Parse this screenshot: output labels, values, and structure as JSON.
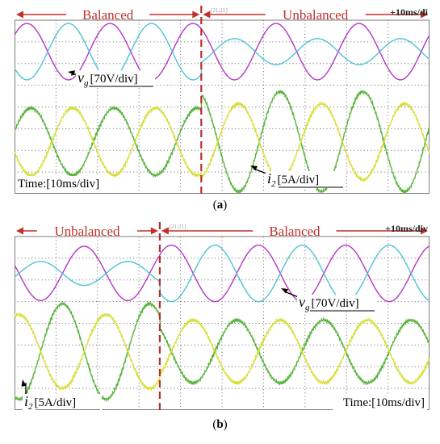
{
  "figure": {
    "caption_a": "a",
    "caption_b": "b"
  },
  "colors": {
    "vg_phase_a": "#b535c7",
    "vg_phase_b": "#4ec3d6",
    "i2_phase_a": "#5ab43e",
    "i2_phase_b": "#d8df3c",
    "mode_label": "#c0302c",
    "divider": "#b5312c",
    "grid": "#7d7d7d"
  },
  "chart_data": [
    {
      "id": "a",
      "type": "line",
      "title": "",
      "time_scale_label": "10ms/div",
      "top_label": "+10ms/di",
      "trigger_label": "{21:21}",
      "regions": [
        {
          "label": "Balanced",
          "x_start_div": 0,
          "x_end_div": 4.5
        },
        {
          "label": "Unbalanced",
          "x_start_div": 4.5,
          "x_end_div": 10
        }
      ],
      "x": {
        "unit": "div",
        "range": [
          0,
          10
        ],
        "transition_div": 4.5
      },
      "y": {
        "unit": "div",
        "range": [
          -4,
          4
        ]
      },
      "grid": true,
      "annotations": [
        {
          "text_main": "v",
          "text_sub": "g",
          "text_rest": "[70V/div]"
        },
        {
          "text_main": "i",
          "text_sub": "2",
          "text_rest": "[5A/div]"
        },
        {
          "text": "Time:[10ms/div]"
        }
      ],
      "series": [
        {
          "group": "vg",
          "colorKey": "vg_phase_a",
          "period_div": 2,
          "segments": [
            {
              "x0": 0,
              "x1": 4.5,
              "amp": 1.3,
              "offset": 2.55,
              "phase": 0.1
            },
            {
              "x0": 4.5,
              "x1": 10,
              "amp": 1.3,
              "offset": 2.55,
              "phase": 0.1
            }
          ]
        },
        {
          "group": "vg",
          "colorKey": "vg_phase_b",
          "period_div": 2,
          "segments": [
            {
              "x0": 0,
              "x1": 4.5,
              "amp": 1.3,
              "offset": 2.55,
              "phase": 0.6
            },
            {
              "x0": 4.5,
              "x1": 10,
              "amp": 0.6,
              "offset": 2.55,
              "phase": 0.6
            }
          ]
        },
        {
          "group": "i2",
          "colorKey": "i2_phase_a",
          "period_div": 2,
          "segments": [
            {
              "x0": 0,
              "x1": 4.5,
              "amp": 1.55,
              "offset": -1.6,
              "phase": 0.05
            },
            {
              "x0": 4.5,
              "x1": 10,
              "amp": 2.3,
              "offset": -1.6,
              "phase": 0.05
            }
          ]
        },
        {
          "group": "i2",
          "colorKey": "i2_phase_b",
          "period_div": 2,
          "segments": [
            {
              "x0": 0,
              "x1": 4.5,
              "amp": 1.55,
              "offset": -1.6,
              "phase": 0.55
            },
            {
              "x0": 4.5,
              "x1": 10,
              "amp": 1.75,
              "offset": -1.6,
              "phase": 0.55
            }
          ]
        }
      ]
    },
    {
      "id": "b",
      "type": "line",
      "title": "",
      "time_scale_label": "10ms/div",
      "top_label": "+10ms/div",
      "trigger_label": "{21:21}",
      "regions": [
        {
          "label": "Unbalanced",
          "x_start_div": 0,
          "x_end_div": 3.5
        },
        {
          "label": "Balanced",
          "x_start_div": 3.5,
          "x_end_div": 10
        }
      ],
      "x": {
        "unit": "div",
        "range": [
          0,
          10
        ],
        "transition_div": 3.5
      },
      "y": {
        "unit": "div",
        "range": [
          -4,
          4
        ]
      },
      "grid": true,
      "annotations": [
        {
          "text_main": "v",
          "text_sub": "g",
          "text_rest": "[70V/div]"
        },
        {
          "text_main": "i",
          "text_sub": "2",
          "text_rest": "[5A/div]"
        },
        {
          "text": "Time:[10ms/div]"
        }
      ],
      "series": [
        {
          "group": "vg",
          "colorKey": "vg_phase_a",
          "period_div": 2.1,
          "segments": [
            {
              "x0": 0,
              "x1": 3.5,
              "amp": 1.25,
              "offset": 2.3,
              "phase": 0.45
            },
            {
              "x0": 3.5,
              "x1": 10,
              "amp": 1.3,
              "offset": 2.3,
              "phase": 0.45
            }
          ]
        },
        {
          "group": "vg",
          "colorKey": "vg_phase_b",
          "period_div": 2.1,
          "segments": [
            {
              "x0": 0,
              "x1": 3.5,
              "amp": 0.55,
              "offset": 2.3,
              "phase": 0.95
            },
            {
              "x0": 3.5,
              "x1": 10,
              "amp": 1.3,
              "offset": 2.3,
              "phase": 0.95
            }
          ]
        },
        {
          "group": "i2",
          "colorKey": "i2_phase_a",
          "period_div": 2.1,
          "segments": [
            {
              "x0": 0,
              "x1": 3.5,
              "amp": 2.2,
              "offset": -1.3,
              "phase": 0.7
            },
            {
              "x0": 3.5,
              "x1": 10,
              "amp": 1.45,
              "offset": -1.3,
              "phase": 0.7
            }
          ]
        },
        {
          "group": "i2",
          "colorKey": "i2_phase_b",
          "period_div": 2.1,
          "segments": [
            {
              "x0": 0,
              "x1": 3.5,
              "amp": 1.7,
              "offset": -1.3,
              "phase": 0.2
            },
            {
              "x0": 3.5,
              "x1": 10,
              "amp": 1.45,
              "offset": -1.3,
              "phase": 0.2
            }
          ]
        }
      ]
    }
  ]
}
